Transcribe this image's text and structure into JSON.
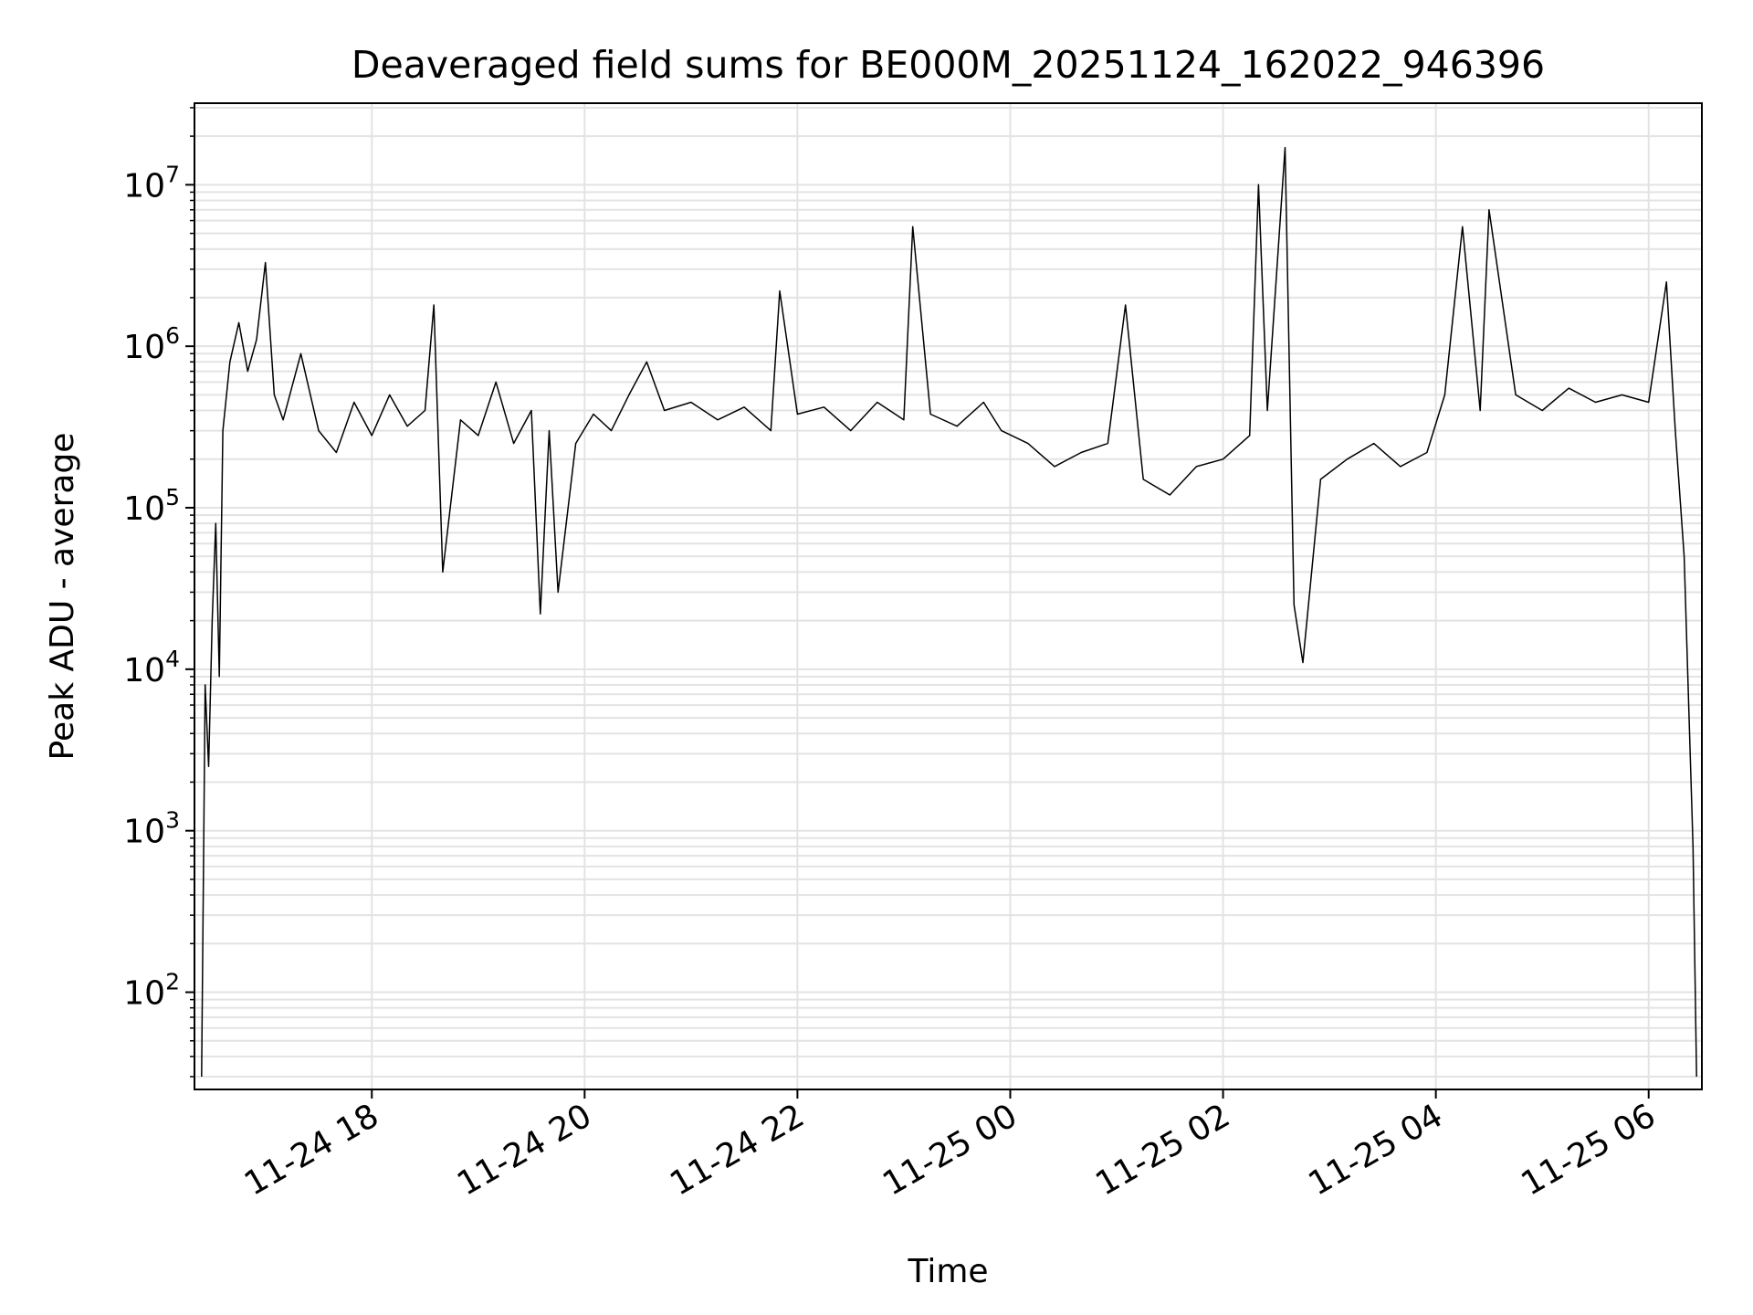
{
  "chart_data": {
    "type": "line",
    "title": "Deaveraged field sums for BE000M_20251124_162022_946396",
    "xlabel": "Time",
    "ylabel": "Peak ADU - average",
    "y_scale": "log",
    "ylim": [
      25,
      32000000
    ],
    "xlim": [
      "2025-11-24 16:20",
      "2025-11-25 06:30"
    ],
    "grid": true,
    "line_color": "#000000",
    "grid_color": "#e3e3e3",
    "x_ticks": [
      {
        "t": "2025-11-24 18:00",
        "label": "11-24 18"
      },
      {
        "t": "2025-11-24 20:00",
        "label": "11-24 20"
      },
      {
        "t": "2025-11-24 22:00",
        "label": "11-24 22"
      },
      {
        "t": "2025-11-25 00:00",
        "label": "11-25 00"
      },
      {
        "t": "2025-11-25 02:00",
        "label": "11-25 02"
      },
      {
        "t": "2025-11-25 04:00",
        "label": "11-25 04"
      },
      {
        "t": "2025-11-25 06:00",
        "label": "11-25 06"
      }
    ],
    "y_ticks": [
      {
        "value": 100,
        "base": "10",
        "exp": "2"
      },
      {
        "value": 1000,
        "base": "10",
        "exp": "3"
      },
      {
        "value": 10000,
        "base": "10",
        "exp": "4"
      },
      {
        "value": 100000,
        "base": "10",
        "exp": "5"
      },
      {
        "value": 1000000,
        "base": "10",
        "exp": "6"
      },
      {
        "value": 10000000,
        "base": "10",
        "exp": "7"
      }
    ],
    "series": [
      {
        "points": [
          [
            "2025-11-24 16:24",
            30
          ],
          [
            "2025-11-24 16:26",
            8000
          ],
          [
            "2025-11-24 16:28",
            2500
          ],
          [
            "2025-11-24 16:30",
            20000
          ],
          [
            "2025-11-24 16:32",
            80000
          ],
          [
            "2025-11-24 16:34",
            9000
          ],
          [
            "2025-11-24 16:36",
            300000
          ],
          [
            "2025-11-24 16:40",
            800000
          ],
          [
            "2025-11-24 16:45",
            1400000
          ],
          [
            "2025-11-24 16:50",
            700000
          ],
          [
            "2025-11-24 16:55",
            1100000
          ],
          [
            "2025-11-24 17:00",
            3300000
          ],
          [
            "2025-11-24 17:05",
            500000
          ],
          [
            "2025-11-24 17:10",
            350000
          ],
          [
            "2025-11-24 17:20",
            900000
          ],
          [
            "2025-11-24 17:30",
            300000
          ],
          [
            "2025-11-24 17:40",
            220000
          ],
          [
            "2025-11-24 17:50",
            450000
          ],
          [
            "2025-11-24 18:00",
            280000
          ],
          [
            "2025-11-24 18:10",
            500000
          ],
          [
            "2025-11-24 18:20",
            320000
          ],
          [
            "2025-11-24 18:30",
            400000
          ],
          [
            "2025-11-24 18:35",
            1800000
          ],
          [
            "2025-11-24 18:40",
            40000
          ],
          [
            "2025-11-24 18:50",
            350000
          ],
          [
            "2025-11-24 19:00",
            280000
          ],
          [
            "2025-11-24 19:10",
            600000
          ],
          [
            "2025-11-24 19:20",
            250000
          ],
          [
            "2025-11-24 19:30",
            400000
          ],
          [
            "2025-11-24 19:35",
            22000
          ],
          [
            "2025-11-24 19:40",
            300000
          ],
          [
            "2025-11-24 19:45",
            30000
          ],
          [
            "2025-11-24 19:55",
            250000
          ],
          [
            "2025-11-24 20:05",
            380000
          ],
          [
            "2025-11-24 20:15",
            300000
          ],
          [
            "2025-11-24 20:25",
            500000
          ],
          [
            "2025-11-24 20:35",
            800000
          ],
          [
            "2025-11-24 20:45",
            400000
          ],
          [
            "2025-11-24 21:00",
            450000
          ],
          [
            "2025-11-24 21:15",
            350000
          ],
          [
            "2025-11-24 21:30",
            420000
          ],
          [
            "2025-11-24 21:45",
            300000
          ],
          [
            "2025-11-24 21:50",
            2200000
          ],
          [
            "2025-11-24 22:00",
            380000
          ],
          [
            "2025-11-24 22:15",
            420000
          ],
          [
            "2025-11-24 22:30",
            300000
          ],
          [
            "2025-11-24 22:45",
            450000
          ],
          [
            "2025-11-24 23:00",
            350000
          ],
          [
            "2025-11-24 23:05",
            5500000
          ],
          [
            "2025-11-24 23:15",
            380000
          ],
          [
            "2025-11-24 23:30",
            320000
          ],
          [
            "2025-11-24 23:45",
            450000
          ],
          [
            "2025-11-24 23:55",
            300000
          ],
          [
            "2025-11-25 00:10",
            250000
          ],
          [
            "2025-11-25 00:25",
            180000
          ],
          [
            "2025-11-25 00:40",
            220000
          ],
          [
            "2025-11-25 00:55",
            250000
          ],
          [
            "2025-11-25 01:05",
            1800000
          ],
          [
            "2025-11-25 01:15",
            150000
          ],
          [
            "2025-11-25 01:30",
            120000
          ],
          [
            "2025-11-25 01:45",
            180000
          ],
          [
            "2025-11-25 02:00",
            200000
          ],
          [
            "2025-11-25 02:15",
            280000
          ],
          [
            "2025-11-25 02:20",
            10000000
          ],
          [
            "2025-11-25 02:25",
            400000
          ],
          [
            "2025-11-25 02:35",
            17000000
          ],
          [
            "2025-11-25 02:40",
            25000
          ],
          [
            "2025-11-25 02:45",
            11000
          ],
          [
            "2025-11-25 02:55",
            150000
          ],
          [
            "2025-11-25 03:10",
            200000
          ],
          [
            "2025-11-25 03:25",
            250000
          ],
          [
            "2025-11-25 03:40",
            180000
          ],
          [
            "2025-11-25 03:55",
            220000
          ],
          [
            "2025-11-25 04:05",
            500000
          ],
          [
            "2025-11-25 04:15",
            5500000
          ],
          [
            "2025-11-25 04:25",
            400000
          ],
          [
            "2025-11-25 04:30",
            7000000
          ],
          [
            "2025-11-25 04:45",
            500000
          ],
          [
            "2025-11-25 05:00",
            400000
          ],
          [
            "2025-11-25 05:15",
            550000
          ],
          [
            "2025-11-25 05:30",
            450000
          ],
          [
            "2025-11-25 05:45",
            500000
          ],
          [
            "2025-11-25 06:00",
            450000
          ],
          [
            "2025-11-25 06:10",
            2500000
          ],
          [
            "2025-11-25 06:15",
            300000
          ],
          [
            "2025-11-25 06:20",
            50000
          ],
          [
            "2025-11-25 06:25",
            800
          ],
          [
            "2025-11-25 06:27",
            30
          ]
        ]
      }
    ]
  }
}
